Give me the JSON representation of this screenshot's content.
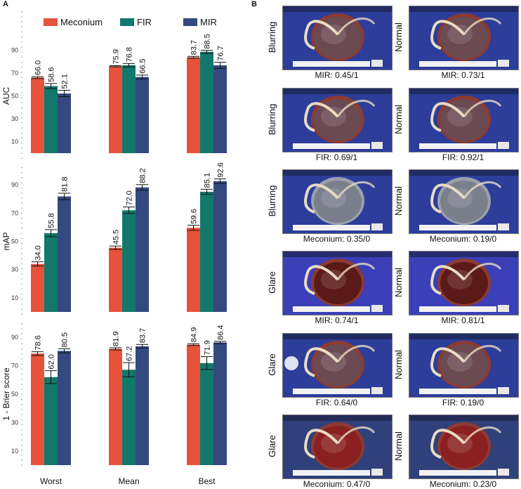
{
  "panel_labels": {
    "a": "A",
    "b": "B"
  },
  "colors": {
    "meconium": "#e6533a",
    "fir": "#12786b",
    "mir": "#34497f",
    "ticks": "#777777"
  },
  "chart_data": {
    "type": "bar",
    "title": "",
    "legend": {
      "position": "top",
      "entries": [
        "Meconium",
        "FIR",
        "MIR"
      ]
    },
    "categories": [
      "Worst",
      "Mean",
      "Best"
    ],
    "subplots": [
      {
        "ylabel": "AUC",
        "ylim": [
          0,
          100
        ],
        "ticks": [
          10,
          30,
          50,
          70,
          90
        ],
        "series": [
          {
            "name": "Meconium",
            "values": [
              66.0,
              75.9,
              83.7
            ],
            "labels": [
              "66.0",
              "75.9",
              "83.7"
            ],
            "errors": [
              0.8,
              0.5,
              0.8
            ]
          },
          {
            "name": "FIR",
            "values": [
              58.6,
              76.8,
              88.5
            ],
            "labels": [
              "58.6",
              "76.8",
              "88.5"
            ],
            "errors": [
              2.2,
              1.5,
              1.3
            ]
          },
          {
            "name": "MIR",
            "values": [
              52.1,
              66.5,
              76.7
            ],
            "labels": [
              "52.1",
              "66.5",
              "76.7"
            ],
            "errors": [
              2.8,
              1.7,
              2.7
            ]
          }
        ]
      },
      {
        "ylabel": "mAP",
        "ylim": [
          0,
          100
        ],
        "ticks": [
          10,
          30,
          50,
          70,
          90
        ],
        "series": [
          {
            "name": "Meconium",
            "values": [
              34.0,
              45.5,
              59.6
            ],
            "labels": [
              "34.0",
              "45.5",
              "59.6"
            ],
            "errors": [
              1.5,
              1.2,
              1.8
            ]
          },
          {
            "name": "FIR",
            "values": [
              55.8,
              72.0,
              85.1
            ],
            "labels": [
              "55.8",
              "72.0",
              "85.1"
            ],
            "errors": [
              2.5,
              2.3,
              1.8
            ]
          },
          {
            "name": "MIR",
            "values": [
              81.8,
              88.2,
              92.6
            ],
            "labels": [
              "81.8",
              "88.2",
              "92.6"
            ],
            "errors": [
              2.3,
              2.0,
              1.6
            ]
          }
        ]
      },
      {
        "ylabel": "1 - Brier score",
        "ylim": [
          0,
          100
        ],
        "ticks": [
          10,
          30,
          50,
          70,
          90
        ],
        "series": [
          {
            "name": "Meconium",
            "values": [
              78.6,
              81.9,
              84.9
            ],
            "labels": [
              "78.6",
              "81.9",
              "84.9"
            ],
            "errors": [
              1.3,
              0.8,
              0.7
            ]
          },
          {
            "name": "FIR",
            "values": [
              62.0,
              67.2,
              71.9
            ],
            "labels": [
              "62.0",
              "67.2",
              "71.9"
            ],
            "errors": [
              4.5,
              5.0,
              4.5
            ]
          },
          {
            "name": "MIR",
            "values": [
              80.5,
              83.7,
              86.4
            ],
            "labels": [
              "80.5",
              "83.7",
              "86.4"
            ],
            "errors": [
              1.5,
              1.3,
              0.8
            ]
          }
        ]
      }
    ]
  },
  "examples": [
    {
      "left_label": "Blurring",
      "right_label": "Normal",
      "left_caption": "MIR: 0.45/1",
      "right_caption": "MIR: 0.73/1"
    },
    {
      "left_label": "Blurring",
      "right_label": "Normal",
      "left_caption": "FIR: 0.69/1",
      "right_caption": "FIR: 0.92/1"
    },
    {
      "left_label": "Blurring",
      "right_label": "Normal",
      "left_caption": "Meconium: 0.35/0",
      "right_caption": "Meconium: 0.19/0"
    },
    {
      "left_label": "Glare",
      "right_label": "Normal",
      "left_caption": "MIR: 0.74/1",
      "right_caption": "MIR: 0.81/1"
    },
    {
      "left_label": "Glare",
      "right_label": "Normal",
      "left_caption": "FIR: 0.64/0",
      "right_caption": "FIR: 0.19/0"
    },
    {
      "left_label": "Glare",
      "right_label": "Normal",
      "left_caption": "Meconium: 0.47/0",
      "right_caption": "Meconium: 0.23/0"
    }
  ]
}
